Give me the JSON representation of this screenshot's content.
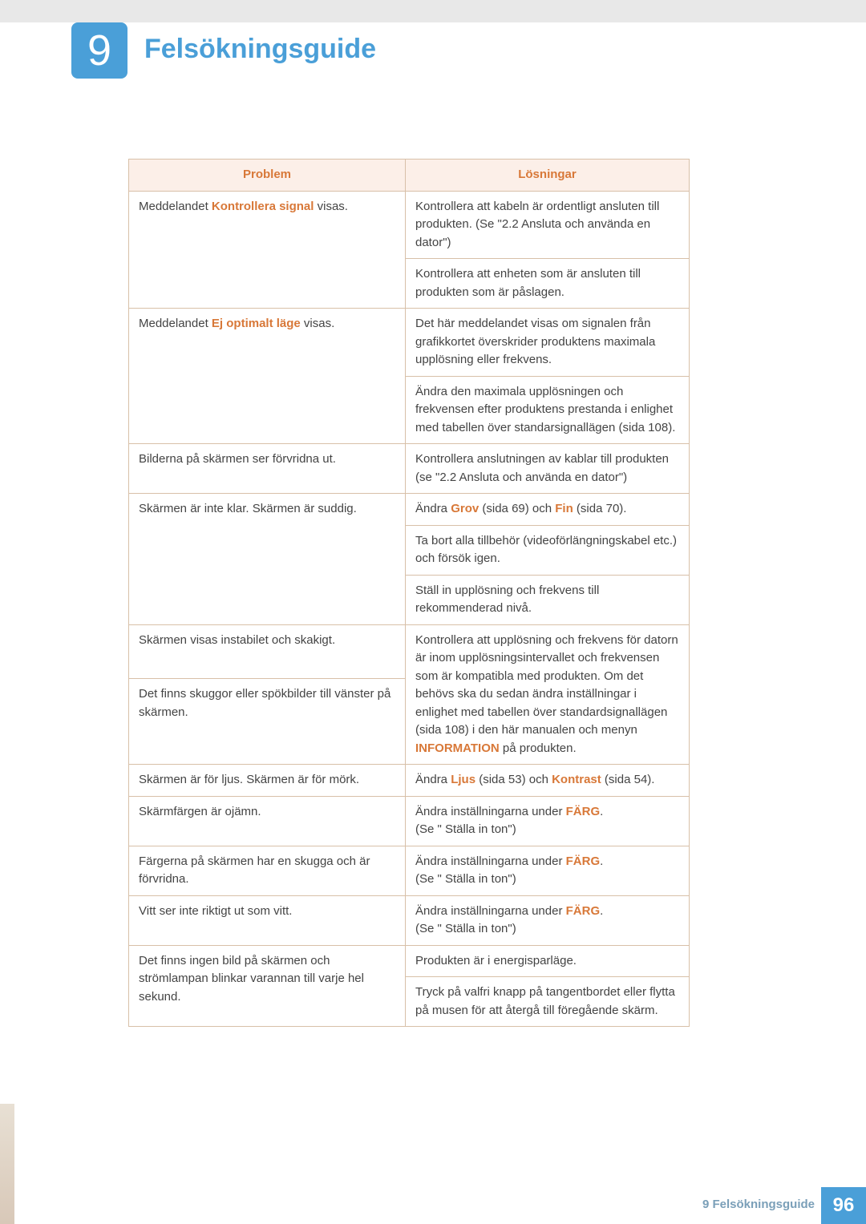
{
  "chapter": {
    "number": "9",
    "title": "Felsökningsguide"
  },
  "table": {
    "headers": {
      "problem": "Problem",
      "solution": "Lösningar"
    }
  },
  "rows": {
    "r1_p_pre": "Meddelandet ",
    "r1_p_hl": "Kontrollera signal",
    "r1_p_post": " visas.",
    "r1_s": "Kontrollera att kabeln är ordentligt ansluten till produkten. (Se \"2.2 Ansluta och använda en dator\")",
    "r2_s": "Kontrollera att enheten som är ansluten till produkten som är påslagen.",
    "r3_p_pre": "Meddelandet ",
    "r3_p_hl": "Ej optimalt läge",
    "r3_p_post": " visas.",
    "r3_s": "Det här meddelandet visas om signalen från grafikkortet överskrider produktens maximala upplösning eller frekvens.",
    "r4_s": "Ändra den maximala upplösningen och frekvensen efter produktens prestanda i enlighet med tabellen över standarsignallägen (sida 108).",
    "r5_p": "Bilderna på skärmen ser förvridna ut.",
    "r5_s": "Kontrollera anslutningen av kablar till produkten (se \"2.2 Ansluta och använda en dator\")",
    "r6_p": "Skärmen är inte klar. Skärmen är suddig.",
    "r6_s_pre": "Ändra ",
    "r6_s_hl1": "Grov",
    "r6_s_mid": " (sida 69) och ",
    "r6_s_hl2": "Fin",
    "r6_s_post": " (sida 70).",
    "r7_s": "Ta bort alla tillbehör (videoförlängningskabel etc.) och försök igen.",
    "r8_s": "Ställ in upplösning och frekvens till rekommenderad nivå.",
    "r9_p": "Skärmen visas instabilet och skakigt.",
    "r9_s_pre": "Kontrollera att upplösning och frekvens för datorn är inom upplösningsintervallet och frekvensen som är kompatibla med produkten. Om det behövs ska du sedan ändra inställningar i enlighet med tabellen över standardsignallägen (sida 108) i den här manualen och menyn ",
    "r9_s_hl": "INFORMATION",
    "r9_s_post": " på produkten.",
    "r10_p": "Det finns skuggor eller spökbilder till vänster på skärmen.",
    "r11_p": "Skärmen är för ljus. Skärmen är för mörk.",
    "r11_s_pre": "Ändra ",
    "r11_s_hl1": "Ljus",
    "r11_s_mid": " (sida 53) och ",
    "r11_s_hl2": "Kontrast",
    "r11_s_post": " (sida 54).",
    "r12_p": "Skärmfärgen är ojämn.",
    "r12_s_pre": "Ändra inställningarna under ",
    "r12_s_hl": "FÄRG",
    "r12_s_post1": ".",
    "r12_s_post2": "(Se \" Ställa in ton\")",
    "r13_p": "Färgerna på skärmen har en skugga och är förvridna.",
    "r13_s_pre": "Ändra inställningarna under ",
    "r13_s_hl": "FÄRG",
    "r13_s_post1": ".",
    "r13_s_post2": "(Se \" Ställa in ton\")",
    "r14_p": "Vitt ser inte riktigt ut som vitt.",
    "r14_s_pre": "Ändra inställningarna under ",
    "r14_s_hl": "FÄRG",
    "r14_s_post1": ".",
    "r14_s_post2": "(Se \" Ställa in ton\")",
    "r15_p": "Det finns ingen bild på skärmen och strömlampan blinkar varannan till varje hel sekund.",
    "r15_s": "Produkten är i energisparläge.",
    "r16_s": "Tryck på valfri knapp på tangentbordet eller flytta på musen för att återgå till föregående skärm."
  },
  "footer": {
    "label": "9 Felsökningsguide",
    "page": "96"
  },
  "colors": {
    "accent_blue": "#4a9fd8",
    "accent_orange": "#d87838",
    "header_bg": "#fcefe8",
    "border": "#d8c0a8",
    "top_bar": "#e8e8e8",
    "text": "#444444"
  }
}
